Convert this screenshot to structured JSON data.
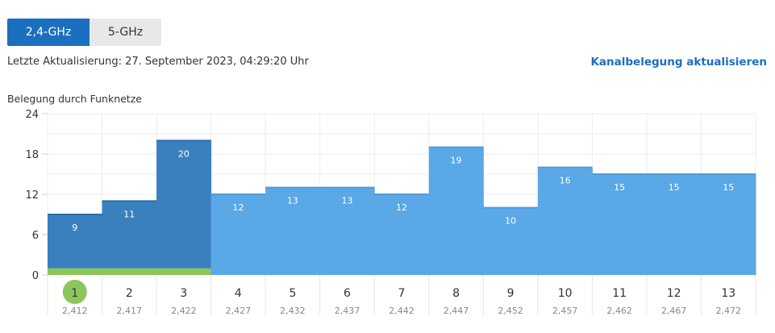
{
  "tabs": [
    {
      "label": "2,4-GHz",
      "active": true
    },
    {
      "label": "5-GHz",
      "active": false
    }
  ],
  "last_update": "Letzte Aktualisierung: 27. September 2023, 04:29:20 Uhr",
  "refresh_link": "Kanalbelegung aktualisieren",
  "chart_title": "Belegung durch Funknetze",
  "colors": {
    "dark_bar": "#3a80bf",
    "light_bar": "#5aa8e6",
    "own_channel": "#8cc65a",
    "active_tab": "#1b6fbf"
  },
  "chart_data": {
    "type": "area",
    "title": "Belegung durch Funknetze",
    "ylim": [
      0,
      24
    ],
    "y_ticks": [
      "0",
      "6",
      "12",
      "18",
      "24"
    ],
    "grid": true,
    "channels": [
      "1",
      "2",
      "3",
      "4",
      "5",
      "6",
      "7",
      "8",
      "9",
      "10",
      "11",
      "12",
      "13"
    ],
    "frequencies": [
      "2,412",
      "2,417",
      "2,422",
      "2,427",
      "2,432",
      "2,437",
      "2,442",
      "2,447",
      "2,452",
      "2,457",
      "2,462",
      "2,467",
      "2,472"
    ],
    "values": [
      9,
      11,
      20,
      12,
      13,
      13,
      12,
      19,
      10,
      16,
      15,
      15,
      15
    ],
    "value_labels": [
      "9",
      "11",
      "20",
      "12",
      "13",
      "13",
      "12",
      "19",
      "10",
      "16",
      "15",
      "15",
      "15"
    ],
    "own_channel": "1",
    "own_range_channels": [
      1,
      3
    ],
    "own_band_value": 1,
    "highlighted_channels": [
      1,
      2,
      3
    ]
  }
}
